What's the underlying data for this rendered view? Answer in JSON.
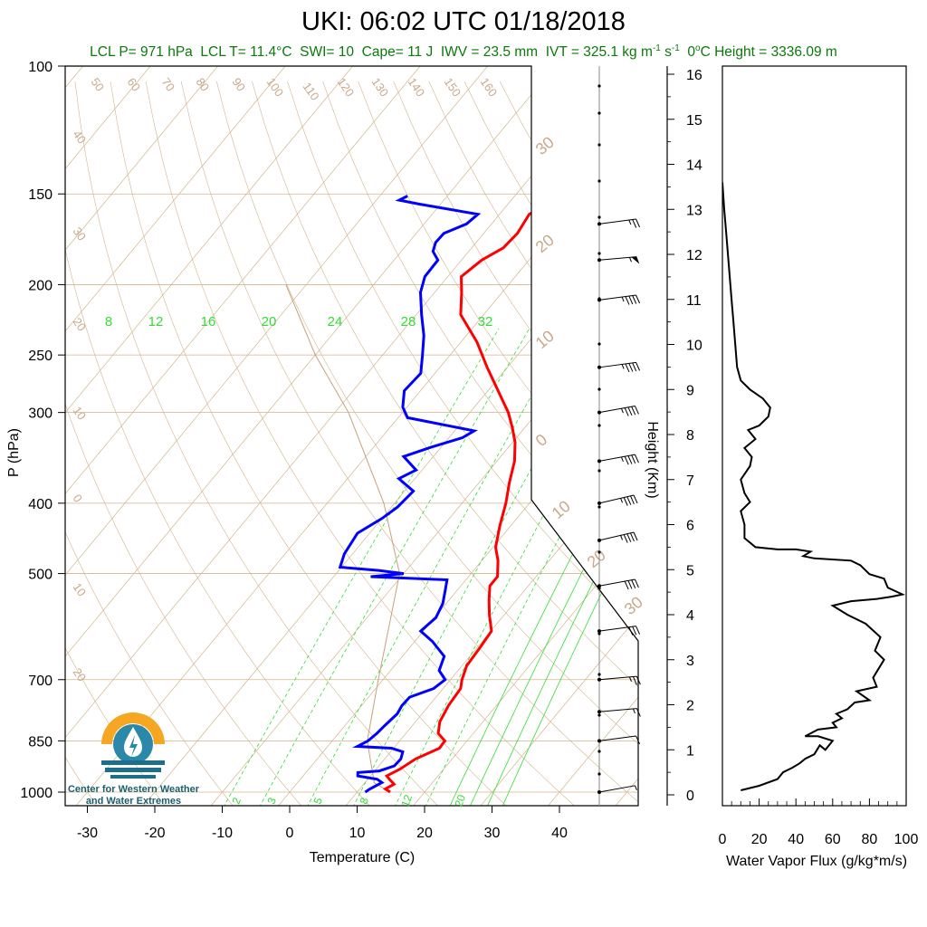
{
  "header": {
    "title": "UKI: 06:02 UTC 01/18/2018",
    "lcl_p": "LCL P= 971 hPa",
    "lcl_t": "LCL T= 11.4°C",
    "swi": "SWI= 10",
    "cape": "Cape= 11 J",
    "iwv": "IWV = 23.5 mm",
    "ivt_prefix": "IVT = 325.1 kg m",
    "ivt_exp1": "-1",
    "ivt_mid": " s",
    "ivt_exp2": "-1",
    "zero_height_prefix": "0",
    "zero_height_sup": "o",
    "zero_height_rest": "C Height = 3336.09 m"
  },
  "logo": {
    "line1": "Center for Western Weather",
    "line2": "and Water Extremes"
  },
  "colors": {
    "temperature": "#ff0000",
    "dewpoint": "#0000ff",
    "isotherm": "#d2b48c",
    "mixing_ratio": "#33dd33",
    "flux": "#000000",
    "logo_orange": "#f5a623",
    "logo_teal": "#1b6f8a"
  },
  "chart_data": [
    {
      "type": "line",
      "chart": "skew-t",
      "xlabel": "Temperature (C)",
      "ylabel": "P (hPa)",
      "xlim": [
        -34,
        50
      ],
      "ylim": [
        1030,
        100
      ],
      "y_scale": "log",
      "x_ticks": [
        -30,
        -20,
        -10,
        0,
        10,
        20,
        30,
        40
      ],
      "y_ticks": [
        100,
        150,
        200,
        250,
        300,
        400,
        500,
        700,
        850,
        1000
      ],
      "isotherm_labels": [
        "50",
        "60",
        "70",
        "80",
        "90",
        "100",
        "110",
        "120",
        "130",
        "140",
        "150",
        "160",
        "40",
        "30",
        "20",
        "10",
        "0",
        "10",
        "20"
      ],
      "right_edge_labels": [
        "30",
        "20",
        "10",
        "0",
        "10",
        "20",
        "30"
      ],
      "mixing_ratio_top_labels": [
        "8",
        "12",
        "16",
        "20",
        "24",
        "28",
        "32"
      ],
      "mixing_ratio_bottom_labels": [
        "2",
        "3",
        "5",
        "8",
        "12",
        "20"
      ],
      "series": [
        {
          "name": "Temperature",
          "points": [
            [
              14.9,
              1000
            ],
            [
              13.8,
              990
            ],
            [
              14.5,
              975
            ],
            [
              13.2,
              960
            ],
            [
              12.4,
              950
            ],
            [
              13.5,
              930
            ],
            [
              14.6,
              900
            ],
            [
              16.8,
              870
            ],
            [
              16.7,
              850
            ],
            [
              14.8,
              830
            ],
            [
              13.6,
              800
            ],
            [
              12.9,
              760
            ],
            [
              12.6,
              720
            ],
            [
              11.7,
              700
            ],
            [
              10.7,
              670
            ],
            [
              10.4,
              630
            ],
            [
              10.1,
              600
            ],
            [
              7.8,
              570
            ],
            [
              6.0,
              545
            ],
            [
              4.3,
              520
            ],
            [
              4.3,
              505
            ],
            [
              2.4,
              480
            ],
            [
              0.4,
              460
            ],
            [
              -1.6,
              430
            ],
            [
              -3.5,
              400
            ],
            [
              -5.5,
              375
            ],
            [
              -7.4,
              350
            ],
            [
              -9.6,
              330
            ],
            [
              -11.8,
              315
            ],
            [
              -14.3,
              300
            ],
            [
              -18.5,
              280
            ],
            [
              -23.0,
              260
            ],
            [
              -27.6,
              240
            ],
            [
              -33.4,
              220
            ],
            [
              -36.0,
              205
            ],
            [
              -38.0,
              195
            ],
            [
              -37.0,
              185
            ],
            [
              -35.3,
              178
            ],
            [
              -35.0,
              170
            ],
            [
              -35.6,
              160
            ],
            [
              -34.8,
              157
            ],
            [
              -32.0,
              155
            ],
            [
              -30.0,
              153
            ],
            [
              -28.5,
              150
            ]
          ]
        },
        {
          "name": "Dewpoint",
          "points": [
            [
              11.2,
              1000
            ],
            [
              11.5,
              990
            ],
            [
              12.5,
              970
            ],
            [
              11.4,
              960
            ],
            [
              8.1,
              950
            ],
            [
              7.7,
              940
            ],
            [
              10.7,
              935
            ],
            [
              12.3,
              920
            ],
            [
              12.4,
              900
            ],
            [
              11.8,
              880
            ],
            [
              9.7,
              870
            ],
            [
              4.4,
              865
            ],
            [
              5.3,
              850
            ],
            [
              5.7,
              830
            ],
            [
              5.9,
              810
            ],
            [
              6.3,
              780
            ],
            [
              6.0,
              760
            ],
            [
              6.1,
              740
            ],
            [
              8.6,
              720
            ],
            [
              9.2,
              700
            ],
            [
              7.2,
              680
            ],
            [
              6.2,
              650
            ],
            [
              2.6,
              620
            ],
            [
              -0.4,
              600
            ],
            [
              0.2,
              575
            ],
            [
              -0.5,
              550
            ],
            [
              -1.9,
              525
            ],
            [
              -2.8,
              510
            ],
            [
              -14.5,
              505
            ],
            [
              -10.0,
              500
            ],
            [
              -14.1,
              495
            ],
            [
              -20.2,
              490
            ],
            [
              -21.2,
              470
            ],
            [
              -21.8,
              440
            ],
            [
              -20.0,
              420
            ],
            [
              -19.1,
              405
            ],
            [
              -18.7,
              385
            ],
            [
              -22.4,
              370
            ],
            [
              -20.9,
              360
            ],
            [
              -24.4,
              345
            ],
            [
              -21.5,
              335
            ],
            [
              -18.0,
              325
            ],
            [
              -17.1,
              318
            ],
            [
              -28.6,
              305
            ],
            [
              -30.6,
              295
            ],
            [
              -32.4,
              280
            ],
            [
              -32.1,
              265
            ],
            [
              -34.1,
              250
            ],
            [
              -36.3,
              235
            ],
            [
              -39.2,
              220
            ],
            [
              -42.1,
              205
            ],
            [
              -43.4,
              195
            ],
            [
              -43.5,
              185
            ],
            [
              -45.3,
              180
            ],
            [
              -46.0,
              175
            ],
            [
              -45.9,
              170
            ],
            [
              -43.7,
              165
            ],
            [
              -43.2,
              160
            ],
            [
              -53.0,
              155
            ],
            [
              -56.6,
              153
            ],
            [
              -55.9,
              151
            ]
          ]
        },
        {
          "name": "Parcel",
          "points": [
            [
              14.9,
              1000
            ],
            [
              11.4,
              971
            ],
            [
              5.2,
              850
            ],
            [
              -0.7,
              700
            ],
            [
              -10.6,
              500
            ],
            [
              -21.6,
              400
            ],
            [
              -38.0,
              300
            ],
            [
              -50.0,
              250
            ],
            [
              -63.0,
              200
            ]
          ]
        }
      ],
      "wind_barbs": {
        "pressure": [
          1000,
          850,
          775,
          700,
          600,
          520,
          450,
          400,
          350,
          300,
          260,
          210,
          185,
          165
        ],
        "speed_kt": [
          5,
          10,
          15,
          25,
          30,
          40,
          45,
          45,
          45,
          45,
          45,
          45,
          55,
          25
        ],
        "direction_deg": [
          250,
          255,
          260,
          260,
          255,
          250,
          245,
          245,
          250,
          250,
          255,
          255,
          260,
          255
        ]
      }
    },
    {
      "type": "line",
      "chart": "water-vapor-flux",
      "xlabel": "Water Vapor Flux (g/kg*m/s)",
      "ylabel": "Height (Km)",
      "xlim": [
        0,
        100
      ],
      "ylim": [
        0,
        16
      ],
      "x_ticks": [
        0,
        20,
        40,
        60,
        80,
        100
      ],
      "y_ticks": [
        0,
        1,
        2,
        3,
        4,
        5,
        6,
        7,
        8,
        9,
        10,
        11,
        12,
        13,
        14,
        15,
        16
      ],
      "series": [
        {
          "name": "Flux",
          "points": [
            [
              10,
              0.1
            ],
            [
              20,
              0.2
            ],
            [
              30,
              0.35
            ],
            [
              33,
              0.5
            ],
            [
              38,
              0.6
            ],
            [
              42,
              0.7
            ],
            [
              45,
              0.8
            ],
            [
              50,
              0.9
            ],
            [
              53,
              1.1
            ],
            [
              56,
              1.0
            ],
            [
              60,
              1.2
            ],
            [
              52,
              1.3
            ],
            [
              45,
              1.3
            ],
            [
              52,
              1.45
            ],
            [
              62,
              1.5
            ],
            [
              60,
              1.6
            ],
            [
              65,
              1.7
            ],
            [
              62,
              1.8
            ],
            [
              68,
              1.9
            ],
            [
              72,
              2.05
            ],
            [
              80,
              2.1
            ],
            [
              73,
              2.3
            ],
            [
              84,
              2.4
            ],
            [
              82,
              2.6
            ],
            [
              85,
              2.8
            ],
            [
              88,
              3.0
            ],
            [
              83,
              3.2
            ],
            [
              86,
              3.5
            ],
            [
              78,
              3.8
            ],
            [
              68,
              4.0
            ],
            [
              60,
              4.2
            ],
            [
              70,
              4.3
            ],
            [
              84,
              4.35
            ],
            [
              92,
              4.4
            ],
            [
              98,
              4.45
            ],
            [
              90,
              4.6
            ],
            [
              88,
              4.8
            ],
            [
              80,
              4.9
            ],
            [
              75,
              5.1
            ],
            [
              70,
              5.2
            ],
            [
              50,
              5.25
            ],
            [
              44,
              5.3
            ],
            [
              48,
              5.4
            ],
            [
              40,
              5.45
            ],
            [
              30,
              5.45
            ],
            [
              18,
              5.5
            ],
            [
              12,
              5.7
            ],
            [
              12,
              6.0
            ],
            [
              10,
              6.3
            ],
            [
              15,
              6.5
            ],
            [
              12,
              6.7
            ],
            [
              10,
              7.0
            ],
            [
              15,
              7.3
            ],
            [
              16,
              7.5
            ],
            [
              12,
              7.7
            ],
            [
              18,
              7.9
            ],
            [
              14,
              8.1
            ],
            [
              20,
              8.2
            ],
            [
              25,
              8.4
            ],
            [
              26,
              8.6
            ],
            [
              22,
              8.8
            ],
            [
              15,
              9.0
            ],
            [
              10,
              9.2
            ],
            [
              8,
              9.5
            ],
            [
              7,
              10.0
            ],
            [
              6,
              10.5
            ],
            [
              5,
              11.0
            ],
            [
              4,
              11.5
            ],
            [
              3,
              12.0
            ],
            [
              2,
              12.5
            ],
            [
              1,
              13.0
            ],
            [
              0,
              13.6
            ]
          ]
        }
      ]
    }
  ]
}
